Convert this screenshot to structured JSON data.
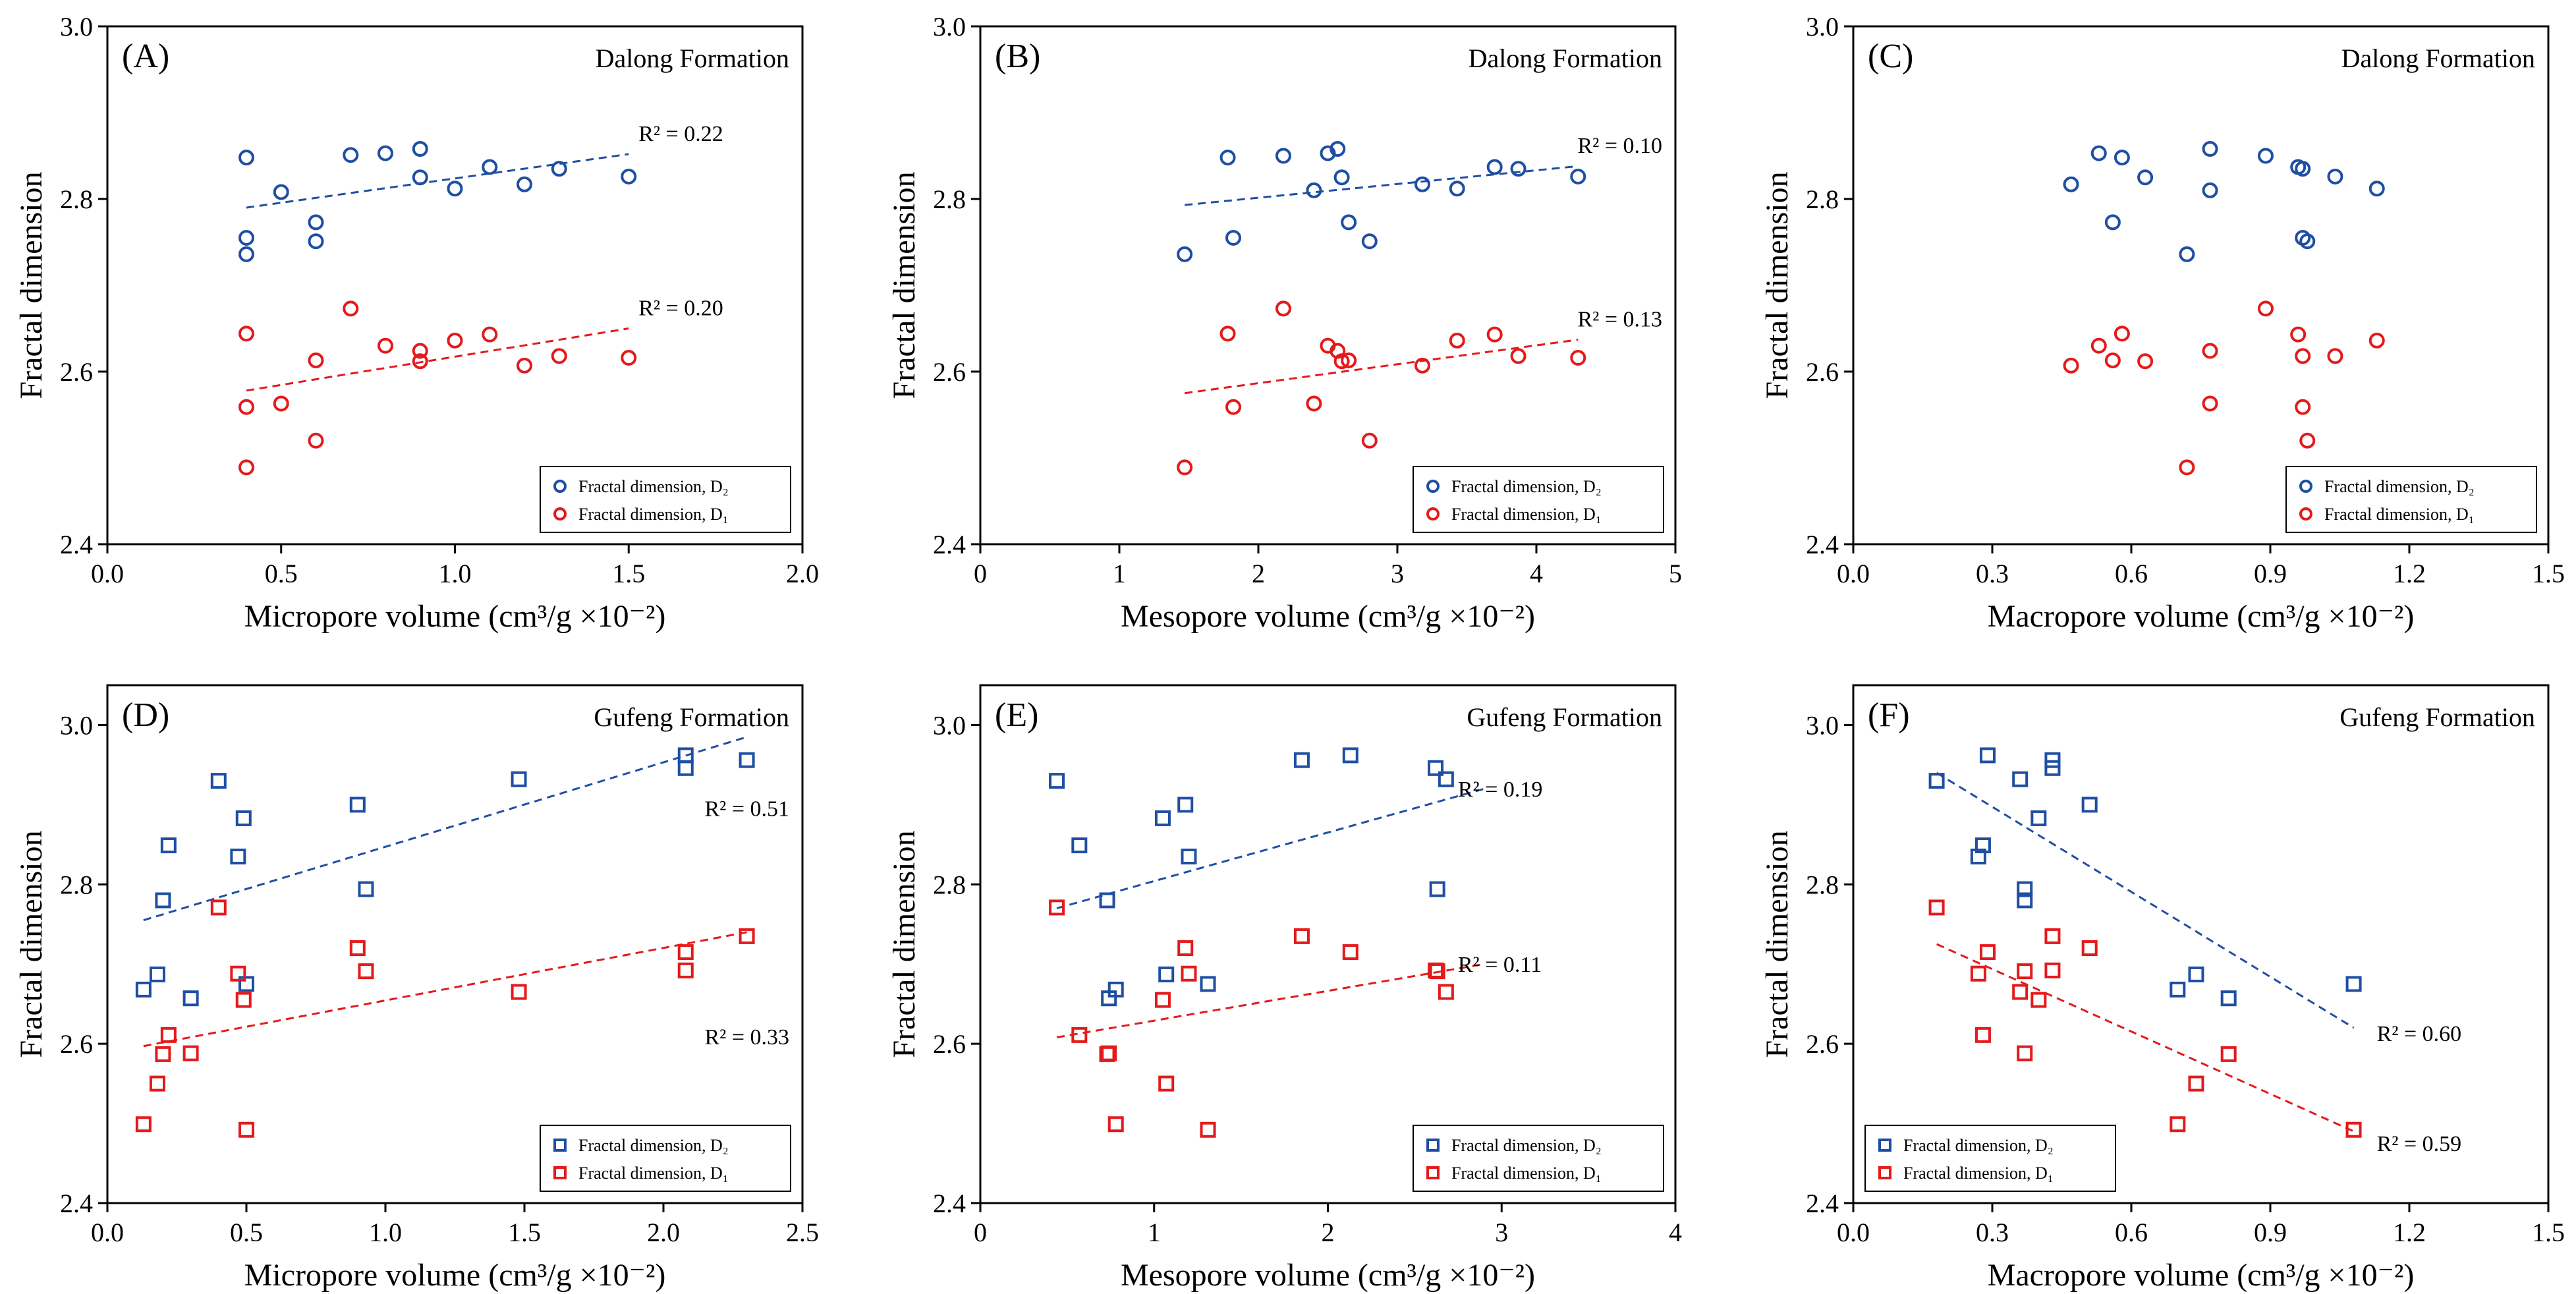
{
  "colors": {
    "D2": "#1f4fa3",
    "D1": "#e41a1c"
  },
  "chart_data": [
    {
      "id": "A",
      "type": "scatter",
      "panel_label": "(A)",
      "formation": "Dalong Formation",
      "marker": "circle",
      "xlabel": "Micropore volume (cm³/g ×10⁻²)",
      "ylabel": "Fractal dimension",
      "xlim": [
        0.0,
        2.0
      ],
      "ylim": [
        2.4,
        3.0
      ],
      "xticks": [
        "0.0",
        "0.5",
        "1.0",
        "1.5",
        "2.0"
      ],
      "xtick_values": [
        0.0,
        0.5,
        1.0,
        1.5,
        2.0
      ],
      "yticks": [
        "2.4",
        "2.6",
        "2.8",
        "3.0"
      ],
      "ytick_values": [
        2.4,
        2.6,
        2.8,
        3.0
      ],
      "legend_position": "bottom-right",
      "series": [
        {
          "name": "Fractal dimension, D₂",
          "key": "D2",
          "x": [
            0.4,
            0.4,
            0.4,
            0.5,
            0.6,
            0.6,
            0.7,
            0.8,
            0.9,
            0.9,
            1.0,
            1.1,
            1.2,
            1.3,
            1.5
          ],
          "y": [
            2.848,
            2.755,
            2.736,
            2.808,
            2.773,
            2.751,
            2.851,
            2.853,
            2.858,
            2.825,
            2.812,
            2.837,
            2.817,
            2.835,
            2.826
          ],
          "trend": {
            "x": [
              0.4,
              1.5
            ],
            "y": [
              2.79,
              2.852
            ]
          },
          "r2": "R² = 0.22"
        },
        {
          "name": "Fractal dimension, D₁",
          "key": "D1",
          "x": [
            0.4,
            0.4,
            0.4,
            0.5,
            0.6,
            0.6,
            0.7,
            0.8,
            0.9,
            0.9,
            1.0,
            1.1,
            1.2,
            1.3,
            1.5
          ],
          "y": [
            2.644,
            2.559,
            2.489,
            2.563,
            2.613,
            2.52,
            2.673,
            2.63,
            2.624,
            2.612,
            2.636,
            2.643,
            2.607,
            2.618,
            2.616
          ],
          "trend": {
            "x": [
              0.4,
              1.5
            ],
            "y": [
              2.578,
              2.65
            ]
          },
          "r2": "R² = 0.20"
        }
      ]
    },
    {
      "id": "B",
      "type": "scatter",
      "panel_label": "(B)",
      "formation": "Dalong Formation",
      "marker": "circle",
      "xlabel": "Mesopore volume (cm³/g ×10⁻²)",
      "ylabel": "Fractal dimension",
      "xlim": [
        0,
        5
      ],
      "ylim": [
        2.4,
        3.0
      ],
      "xticks": [
        "0",
        "1",
        "2",
        "3",
        "4",
        "5"
      ],
      "xtick_values": [
        0,
        1,
        2,
        3,
        4,
        5
      ],
      "yticks": [
        "2.4",
        "2.6",
        "2.8",
        "3.0"
      ],
      "ytick_values": [
        2.4,
        2.6,
        2.8,
        3.0
      ],
      "legend_position": "bottom-right",
      "series": [
        {
          "name": "Fractal dimension, D₂",
          "key": "D2",
          "x": [
            1.47,
            1.78,
            1.82,
            2.18,
            2.4,
            2.5,
            2.57,
            2.6,
            2.65,
            2.8,
            3.18,
            3.43,
            3.7,
            3.87,
            4.3
          ],
          "y": [
            2.736,
            2.848,
            2.755,
            2.85,
            2.81,
            2.853,
            2.858,
            2.825,
            2.773,
            2.751,
            2.817,
            2.812,
            2.837,
            2.835,
            2.826
          ],
          "trend": {
            "x": [
              1.47,
              4.3
            ],
            "y": [
              2.793,
              2.838
            ]
          },
          "r2": "R² = 0.10"
        },
        {
          "name": "Fractal dimension, D₁",
          "key": "D1",
          "x": [
            1.47,
            1.78,
            1.82,
            2.18,
            2.4,
            2.5,
            2.57,
            2.6,
            2.65,
            2.8,
            3.18,
            3.43,
            3.7,
            3.87,
            4.3
          ],
          "y": [
            2.489,
            2.644,
            2.559,
            2.673,
            2.563,
            2.63,
            2.624,
            2.612,
            2.613,
            2.52,
            2.607,
            2.636,
            2.643,
            2.618,
            2.616
          ],
          "trend": {
            "x": [
              1.47,
              4.3
            ],
            "y": [
              2.575,
              2.637
            ]
          },
          "r2": "R² = 0.13"
        }
      ]
    },
    {
      "id": "C",
      "type": "scatter",
      "panel_label": "(C)",
      "formation": "Dalong Formation",
      "marker": "circle",
      "xlabel": "Macropore volume (cm³/g ×10⁻²)",
      "ylabel": "Fractal dimension",
      "xlim": [
        0.0,
        1.5
      ],
      "ylim": [
        2.4,
        3.0
      ],
      "xticks": [
        "0.0",
        "0.3",
        "0.6",
        "0.9",
        "1.2",
        "1.5"
      ],
      "xtick_values": [
        0.0,
        0.3,
        0.6,
        0.9,
        1.2,
        1.5
      ],
      "yticks": [
        "2.4",
        "2.6",
        "2.8",
        "3.0"
      ],
      "ytick_values": [
        2.4,
        2.6,
        2.8,
        3.0
      ],
      "legend_position": "bottom-right",
      "series": [
        {
          "name": "Fractal dimension, D₂",
          "key": "D2",
          "x": [
            0.47,
            0.53,
            0.56,
            0.58,
            0.63,
            0.72,
            0.77,
            0.77,
            0.89,
            0.96,
            0.97,
            0.97,
            0.98,
            1.04,
            1.13
          ],
          "y": [
            2.817,
            2.853,
            2.773,
            2.848,
            2.825,
            2.736,
            2.858,
            2.81,
            2.85,
            2.837,
            2.755,
            2.835,
            2.751,
            2.826,
            2.812
          ],
          "trend": null,
          "r2": ""
        },
        {
          "name": "Fractal dimension, D₁",
          "key": "D1",
          "x": [
            0.47,
            0.53,
            0.56,
            0.58,
            0.63,
            0.72,
            0.77,
            0.77,
            0.89,
            0.96,
            0.97,
            0.97,
            0.98,
            1.04,
            1.13
          ],
          "y": [
            2.607,
            2.63,
            2.613,
            2.644,
            2.612,
            2.489,
            2.624,
            2.563,
            2.673,
            2.643,
            2.559,
            2.618,
            2.52,
            2.618,
            2.636
          ],
          "trend": null,
          "r2": ""
        }
      ]
    },
    {
      "id": "D",
      "type": "scatter",
      "panel_label": "(D)",
      "formation": "Gufeng Formation",
      "marker": "square",
      "xlabel": "Micropore volume (cm³/g ×10⁻²)",
      "ylabel": "Fractal dimension",
      "xlim": [
        0.0,
        2.5
      ],
      "ylim": [
        2.4,
        3.05
      ],
      "xticks": [
        "0.0",
        "0.5",
        "1.0",
        "1.5",
        "2.0",
        "2.5"
      ],
      "xtick_values": [
        0.0,
        0.5,
        1.0,
        1.5,
        2.0,
        2.5
      ],
      "yticks": [
        "2.4",
        "2.6",
        "2.8",
        "3.0"
      ],
      "ytick_values": [
        2.4,
        2.6,
        2.8,
        3.0
      ],
      "legend_position": "bottom-right",
      "series": [
        {
          "name": "Fractal dimension, D₂",
          "key": "D2",
          "x": [
            0.13,
            0.18,
            0.2,
            0.22,
            0.3,
            0.4,
            0.47,
            0.49,
            0.5,
            0.9,
            0.93,
            1.48,
            2.08,
            2.08,
            2.3
          ],
          "y": [
            2.668,
            2.687,
            2.78,
            2.849,
            2.657,
            2.93,
            2.835,
            2.883,
            2.675,
            2.9,
            2.794,
            2.932,
            2.962,
            2.946,
            2.956
          ],
          "trend": {
            "x": [
              0.13,
              2.3
            ],
            "y": [
              2.755,
              2.985
            ]
          },
          "r2": "R² = 0.51"
        },
        {
          "name": "Fractal dimension, D₁",
          "key": "D1",
          "x": [
            0.13,
            0.18,
            0.2,
            0.22,
            0.3,
            0.4,
            0.47,
            0.49,
            0.5,
            0.9,
            0.93,
            1.48,
            2.08,
            2.08,
            2.3
          ],
          "y": [
            2.499,
            2.55,
            2.587,
            2.611,
            2.588,
            2.771,
            2.688,
            2.655,
            2.492,
            2.72,
            2.691,
            2.665,
            2.715,
            2.692,
            2.735
          ],
          "trend": {
            "x": [
              0.13,
              2.3
            ],
            "y": [
              2.597,
              2.74
            ]
          },
          "r2": "R² = 0.33"
        }
      ]
    },
    {
      "id": "E",
      "type": "scatter",
      "panel_label": "(E)",
      "formation": "Gufeng Formation",
      "marker": "square",
      "xlabel": "Mesopore volume (cm³/g ×10⁻²)",
      "ylabel": "Fractal dimension",
      "xlim": [
        0,
        4
      ],
      "ylim": [
        2.4,
        3.05
      ],
      "xticks": [
        "0",
        "1",
        "2",
        "3",
        "4"
      ],
      "xtick_values": [
        0,
        1,
        2,
        3,
        4
      ],
      "yticks": [
        "2.4",
        "2.6",
        "2.8",
        "3.0"
      ],
      "ytick_values": [
        2.4,
        2.6,
        2.8,
        3.0
      ],
      "legend_position": "bottom-right",
      "series": [
        {
          "name": "Fractal dimension, D₂",
          "key": "D2",
          "x": [
            0.44,
            0.57,
            0.73,
            0.74,
            0.78,
            1.05,
            1.07,
            1.18,
            1.2,
            1.31,
            1.85,
            2.13,
            2.62,
            2.63,
            2.68
          ],
          "y": [
            2.93,
            2.849,
            2.78,
            2.657,
            2.668,
            2.883,
            2.687,
            2.9,
            2.835,
            2.675,
            2.956,
            2.962,
            2.946,
            2.794,
            2.932
          ],
          "trend": {
            "x": [
              0.44,
              2.9
            ],
            "y": [
              2.77,
              2.92
            ]
          },
          "r2": "R² = 0.19"
        },
        {
          "name": "Fractal dimension, D₁",
          "key": "D1",
          "x": [
            0.44,
            0.57,
            0.73,
            0.74,
            0.78,
            1.05,
            1.07,
            1.18,
            1.2,
            1.31,
            1.85,
            2.13,
            2.62,
            2.63,
            2.68
          ],
          "y": [
            2.771,
            2.611,
            2.587,
            2.588,
            2.499,
            2.655,
            2.55,
            2.72,
            2.688,
            2.492,
            2.735,
            2.715,
            2.692,
            2.691,
            2.665
          ],
          "trend": {
            "x": [
              0.44,
              2.9
            ],
            "y": [
              2.608,
              2.7
            ]
          },
          "r2": "R² = 0.11"
        }
      ]
    },
    {
      "id": "F",
      "type": "scatter",
      "panel_label": "(F)",
      "formation": "Gufeng Formation",
      "marker": "square",
      "xlabel": "Macropore volume (cm³/g ×10⁻²)",
      "ylabel": "Fractal dimension",
      "xlim": [
        0.0,
        1.5
      ],
      "ylim": [
        2.4,
        3.05
      ],
      "xticks": [
        "0.0",
        "0.3",
        "0.6",
        "0.9",
        "1.2",
        "1.5"
      ],
      "xtick_values": [
        0.0,
        0.3,
        0.6,
        0.9,
        1.2,
        1.5
      ],
      "yticks": [
        "2.4",
        "2.6",
        "2.8",
        "3.0"
      ],
      "ytick_values": [
        2.4,
        2.6,
        2.8,
        3.0
      ],
      "legend_position": "bottom-left",
      "series": [
        {
          "name": "Fractal dimension, D₂",
          "key": "D2",
          "x": [
            0.18,
            0.27,
            0.28,
            0.29,
            0.36,
            0.37,
            0.37,
            0.4,
            0.43,
            0.43,
            0.51,
            0.7,
            0.74,
            0.81,
            1.08
          ],
          "y": [
            2.93,
            2.835,
            2.849,
            2.962,
            2.932,
            2.794,
            2.78,
            2.883,
            2.946,
            2.956,
            2.9,
            2.668,
            2.687,
            2.657,
            2.675
          ],
          "trend": {
            "x": [
              0.18,
              1.08
            ],
            "y": [
              2.94,
              2.62
            ]
          },
          "r2": "R² = 0.60"
        },
        {
          "name": "Fractal dimension, D₁",
          "key": "D1",
          "x": [
            0.18,
            0.27,
            0.28,
            0.29,
            0.36,
            0.37,
            0.37,
            0.4,
            0.43,
            0.43,
            0.51,
            0.7,
            0.74,
            0.81,
            1.08
          ],
          "y": [
            2.771,
            2.688,
            2.611,
            2.715,
            2.665,
            2.588,
            2.691,
            2.655,
            2.692,
            2.735,
            2.72,
            2.499,
            2.55,
            2.587,
            2.492
          ],
          "trend": {
            "x": [
              0.18,
              1.08
            ],
            "y": [
              2.725,
              2.49
            ]
          },
          "r2": "R² = 0.59"
        }
      ]
    }
  ]
}
